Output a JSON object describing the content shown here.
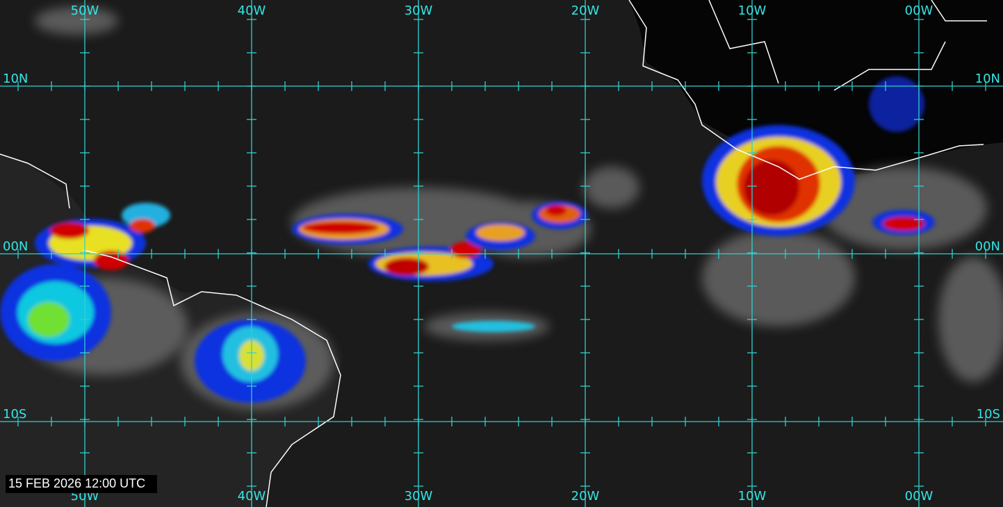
{
  "grid": {
    "longitude_labels": [
      "50W",
      "40W",
      "30W",
      "20W",
      "10W",
      "00W"
    ],
    "latitude_labels": [
      "10N",
      "00N",
      "10S"
    ]
  },
  "timestamp": "15 FEB 2026 12:00 UTC"
}
